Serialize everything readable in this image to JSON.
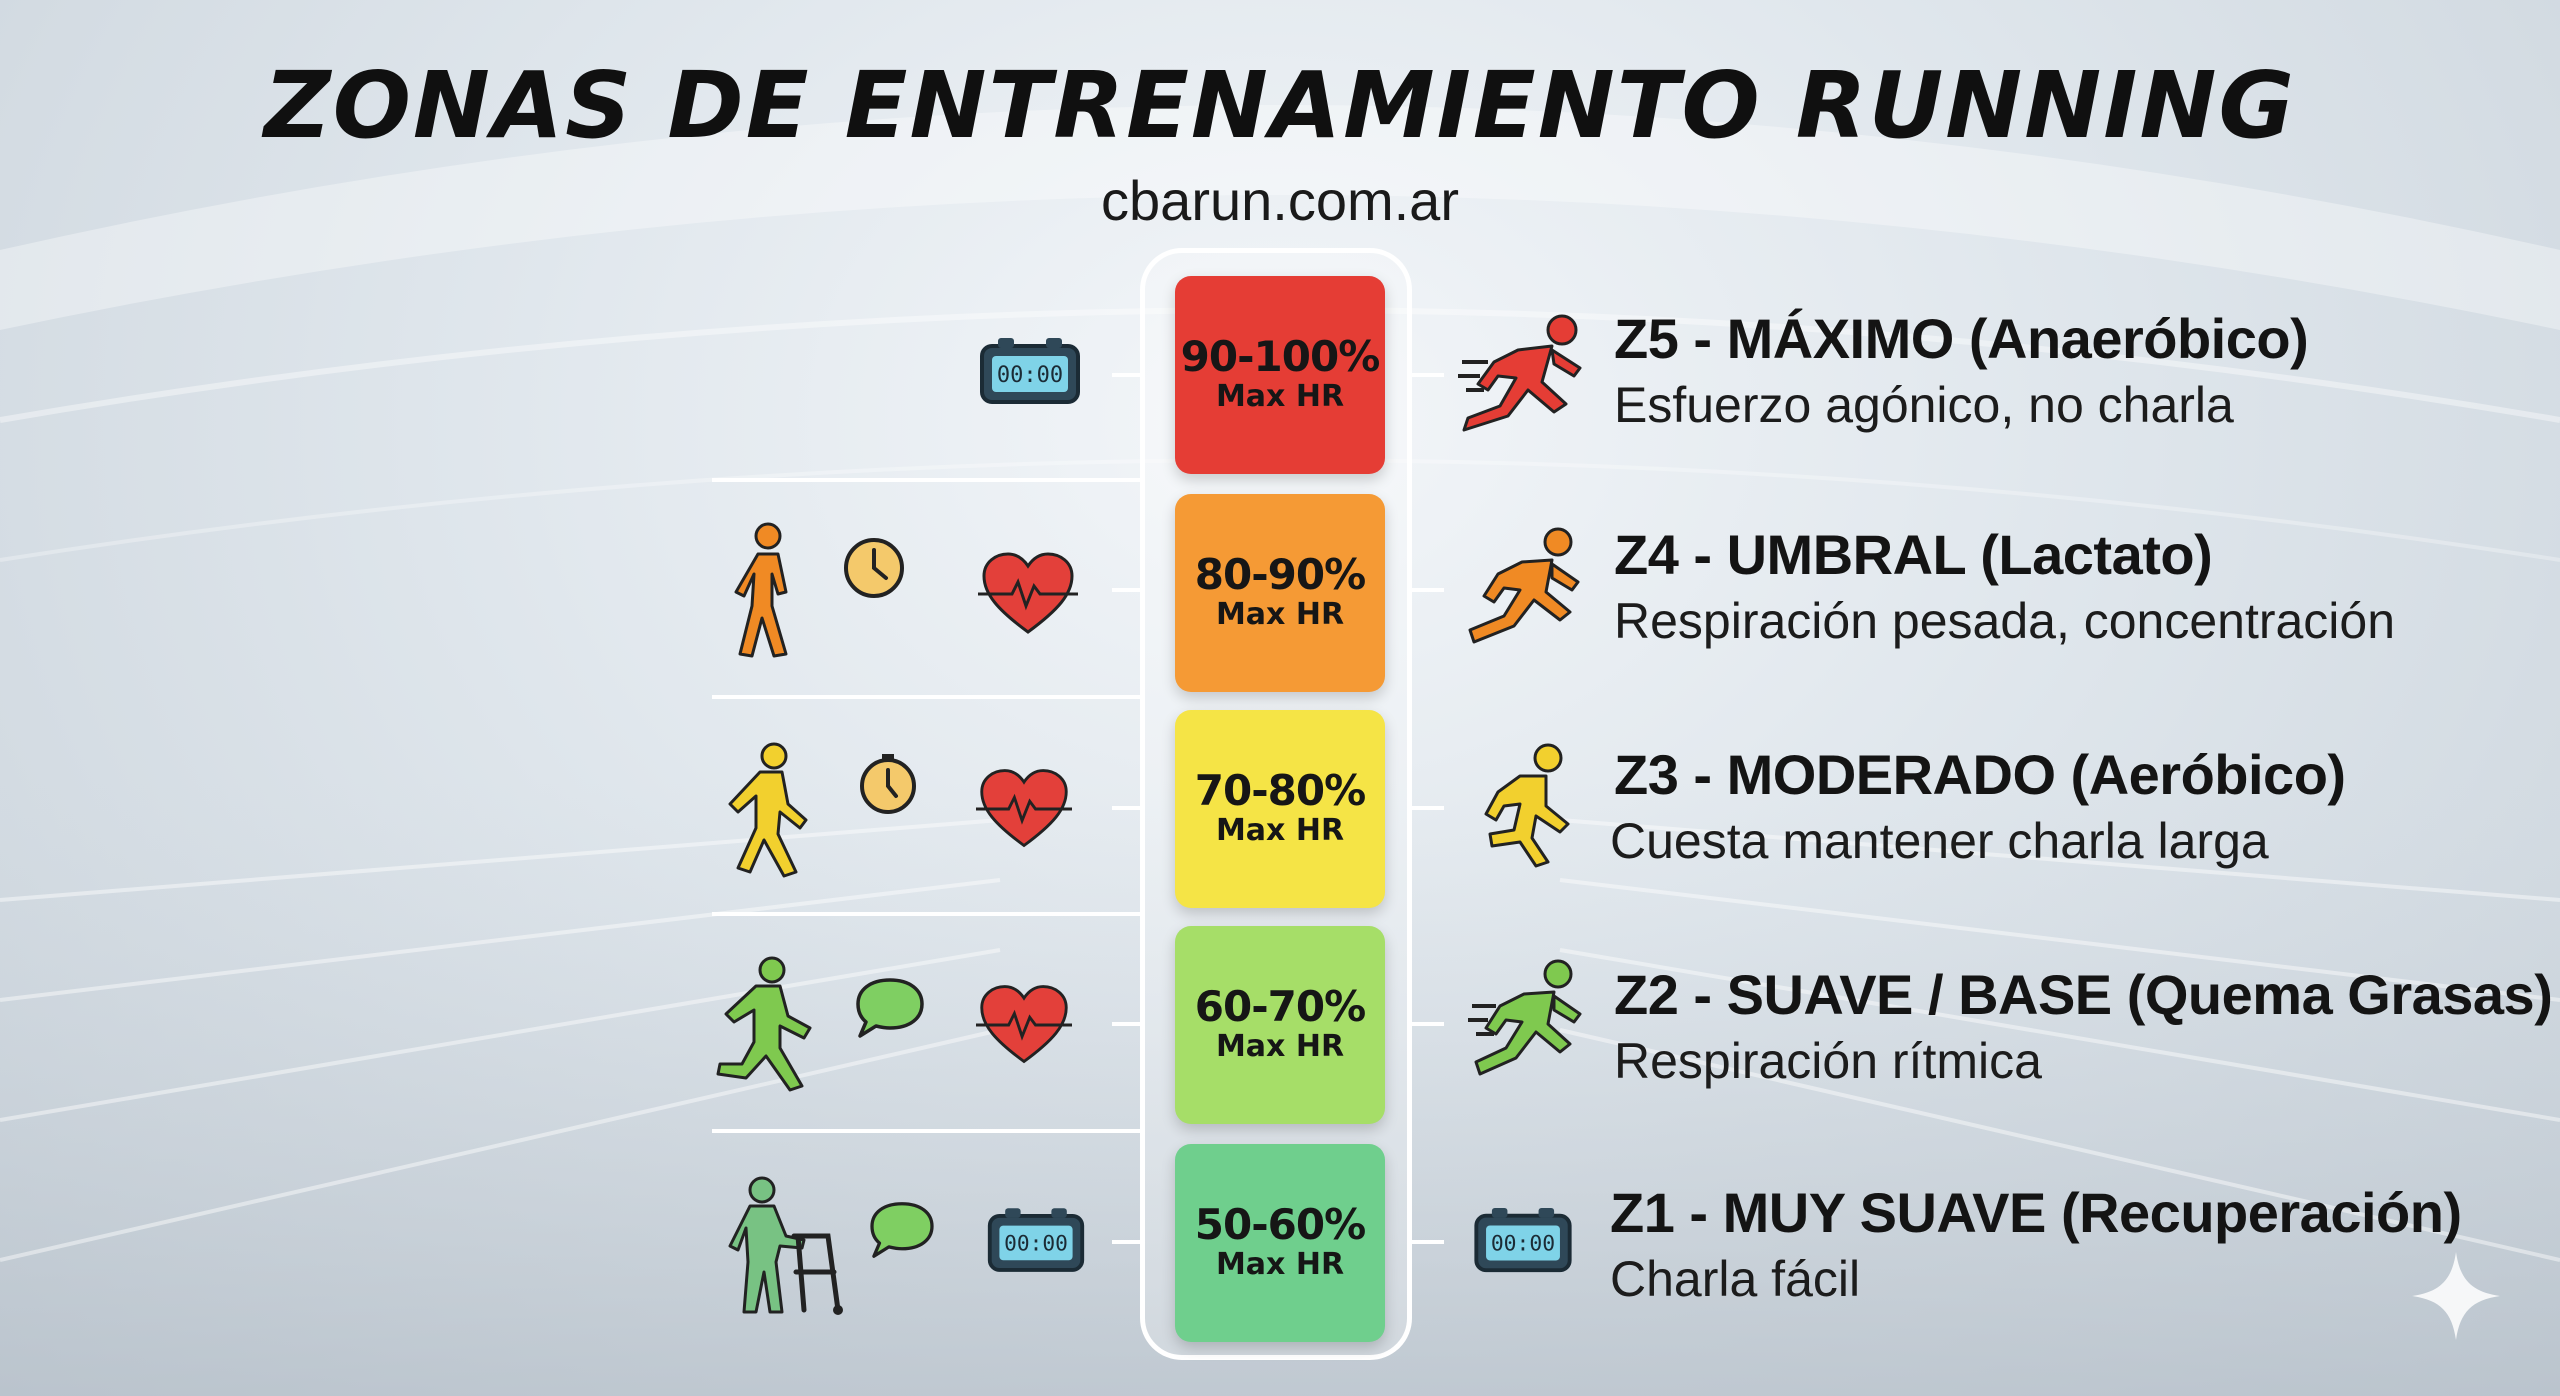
{
  "header": {
    "title": "ZONAS DE ENTRENAMIENTO RUNNING",
    "subtitle": "cbarun.com.ar"
  },
  "zones": [
    {
      "id": "z5",
      "percent": "90-100%",
      "unit": "Max HR",
      "title": "Z5 - MÁXIMO (Anaeróbico)",
      "description": "Esfuerzo agónico, no charla",
      "color": "#e53d35",
      "left_icons": [
        "stopwatch-icon"
      ],
      "right_icon": "sprinter-icon"
    },
    {
      "id": "z4",
      "percent": "80-90%",
      "unit": "Max HR",
      "title": "Z4 - UMBRAL (Lactato)",
      "description": "Respiración pesada, concentración",
      "color": "#f59a35",
      "left_icons": [
        "walker-icon",
        "clock-icon",
        "heart-icon"
      ],
      "right_icon": "runner-icon"
    },
    {
      "id": "z3",
      "percent": "70-80%",
      "unit": "Max HR",
      "title": "Z3 - MODERADO (Aeróbico)",
      "description": "Cuesta mantener charla larga",
      "color": "#f5e446",
      "left_icons": [
        "runner-icon",
        "clock-icon",
        "heart-icon"
      ],
      "right_icon": "runner-icon"
    },
    {
      "id": "z2",
      "percent": "60-70%",
      "unit": "Max HR",
      "title": "Z2 - SUAVE / BASE (Quema Grasas)",
      "description": "Respiración rítmica",
      "color": "#a6de68",
      "left_icons": [
        "runner-icon",
        "speech-bubble-icon",
        "heart-icon"
      ],
      "right_icon": "sprinter-icon"
    },
    {
      "id": "z1",
      "percent": "50-60%",
      "unit": "Max HR",
      "title": "Z1 - MUY SUAVE (Recuperación)",
      "description": "Charla fácil",
      "color": "#6fcf8d",
      "left_icons": [
        "elderly-walker-icon",
        "speech-bubble-icon",
        "stopwatch-icon"
      ],
      "right_icon": "stopwatch-icon"
    }
  ],
  "icon_colors": {
    "z5": "#e53d35",
    "z4": "#f08a24",
    "z3": "#f2d02e",
    "z2": "#7fc94f",
    "z1": "#78c283",
    "heart": "#e3403a",
    "clock": "#f4c96b",
    "bubble": "#7fcf62",
    "stopwatch": "#7fd3e8"
  }
}
